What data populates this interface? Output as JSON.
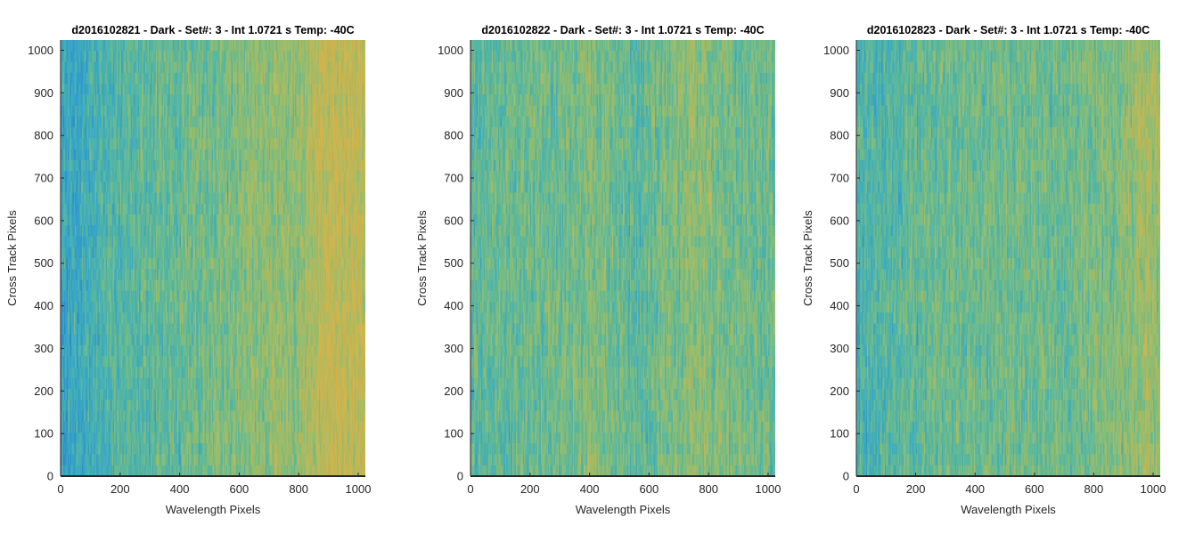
{
  "chart_data": [
    {
      "type": "heatmap",
      "title": "d2016102821 - Dark - Set#: 3 - Int 1.0721 s Temp: -40C",
      "xlabel": "Wavelength Pixels",
      "ylabel": "Cross Track Pixels",
      "xlim": [
        0,
        1024
      ],
      "ylim": [
        0,
        1024
      ],
      "xticks": [
        0,
        200,
        400,
        600,
        800,
        1000
      ],
      "yticks": [
        0,
        100,
        200,
        300,
        400,
        500,
        600,
        700,
        800,
        900,
        1000
      ],
      "colormap": [
        "#1f88cf",
        "#2aa6c8",
        "#4fb89a",
        "#8fbe66",
        "#c4b64a",
        "#dcb23c"
      ],
      "column_profile": {
        "x": [
          0,
          100,
          200,
          300,
          400,
          500,
          600,
          700,
          800,
          860,
          900,
          1000,
          1024
        ],
        "level": [
          0.18,
          0.28,
          0.38,
          0.42,
          0.44,
          0.48,
          0.56,
          0.58,
          0.6,
          0.74,
          0.82,
          0.8,
          0.74
        ]
      }
    },
    {
      "type": "heatmap",
      "title": "d2016102822 - Dark - Set#: 3 - Int 1.0721 s Temp: -40C",
      "xlabel": "Wavelength Pixels",
      "ylabel": "Cross Track Pixels",
      "xlim": [
        0,
        1024
      ],
      "ylim": [
        0,
        1024
      ],
      "xticks": [
        0,
        200,
        400,
        600,
        800,
        1000
      ],
      "yticks": [
        0,
        100,
        200,
        300,
        400,
        500,
        600,
        700,
        800,
        900,
        1000
      ],
      "colormap": [
        "#1f88cf",
        "#2aa6c8",
        "#4fb89a",
        "#8fbe66",
        "#c4b64a",
        "#dcb23c"
      ],
      "column_profile": {
        "x": [
          0,
          100,
          200,
          300,
          400,
          500,
          560,
          650,
          750,
          850,
          1000,
          1024
        ],
        "level": [
          0.4,
          0.44,
          0.46,
          0.48,
          0.52,
          0.46,
          0.4,
          0.5,
          0.58,
          0.5,
          0.46,
          0.44
        ]
      }
    },
    {
      "type": "heatmap",
      "title": "d2016102823 - Dark - Set#: 3 - Int 1.0721 s Temp: -40C",
      "xlabel": "Wavelength Pixels",
      "ylabel": "Cross Track Pixels",
      "xlim": [
        0,
        1024
      ],
      "ylim": [
        0,
        1024
      ],
      "xticks": [
        0,
        200,
        400,
        600,
        800,
        1000
      ],
      "yticks": [
        0,
        100,
        200,
        300,
        400,
        500,
        600,
        700,
        800,
        900,
        1000
      ],
      "colormap": [
        "#1f88cf",
        "#2aa6c8",
        "#4fb89a",
        "#8fbe66",
        "#c4b64a",
        "#dcb23c"
      ],
      "column_profile": {
        "x": [
          0,
          100,
          200,
          300,
          400,
          500,
          600,
          700,
          800,
          900,
          960,
          1024
        ],
        "level": [
          0.32,
          0.36,
          0.42,
          0.46,
          0.46,
          0.48,
          0.48,
          0.46,
          0.5,
          0.56,
          0.66,
          0.62
        ]
      }
    }
  ]
}
